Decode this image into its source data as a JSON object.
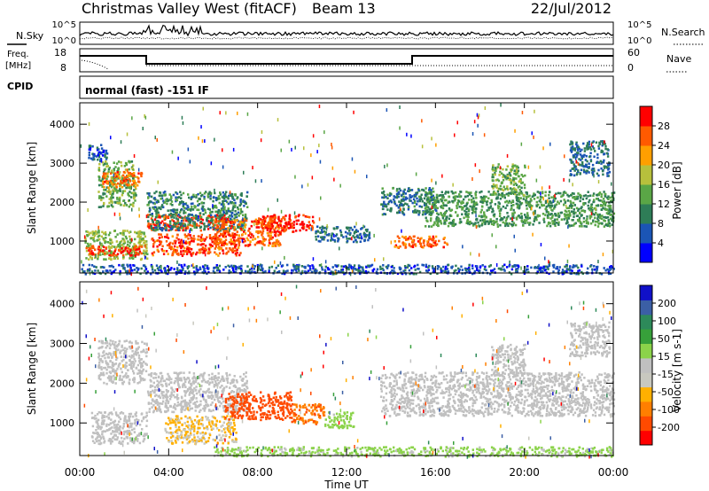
{
  "header": {
    "station": "Christmas Valley West (fitACF)",
    "beam": "Beam 13",
    "date": "22/Jul/2012"
  },
  "top_panels": {
    "nsky_label": "N.Sky",
    "nsky_ticks": [
      "10^5",
      "10^0"
    ],
    "nsearch_label": "N.Search",
    "nsearch_ticks": [
      "10^5",
      "10^0"
    ],
    "freq_label_line1": "Freq.",
    "freq_label_line2": "[MHz]",
    "freq_ticks": [
      "18",
      "8"
    ],
    "nave_label": "Nave",
    "nave_ticks": [
      "60",
      "0"
    ],
    "cpid_label": "CPID",
    "cpid_text": "normal (fast) -151 IF"
  },
  "colors": {
    "power_scale": [
      "#0000ff",
      "#1b55b5",
      "#2e7d57",
      "#5aa646",
      "#b7c03c",
      "#ff9f00",
      "#ff5a00",
      "#ff0000"
    ],
    "velocity_scale": [
      "#ff0000",
      "#ff4a00",
      "#ff7f00",
      "#ffb000",
      "#c8c8bf",
      "#c0c0c0",
      "#8bd34a",
      "#37a03a",
      "#2d8a5a",
      "#3b5fa5",
      "#1010c8"
    ]
  },
  "chart_data": [
    {
      "type": "heatmap",
      "panel": "power",
      "ylabel": "Slant Range [km]",
      "xlabel": "Time UT",
      "xticks": [
        "00:00",
        "04:00",
        "08:00",
        "12:00",
        "16:00",
        "20:00",
        "00:00"
      ],
      "yticks": [
        "1000",
        "2000",
        "3000",
        "4000"
      ],
      "ylim": [
        180,
        4550
      ],
      "xlim_hours": [
        0,
        24
      ],
      "colorbar_label": "Power [dB]",
      "colorbar_ticks": [
        "4",
        "8",
        "12",
        "16",
        "20",
        "24",
        "28"
      ],
      "colorbar_range": [
        0,
        32
      ],
      "blobs": [
        {
          "t": [
            0.2,
            3.0
          ],
          "r": [
            550,
            1300
          ],
          "v": 16
        },
        {
          "t": [
            0.2,
            2.8
          ],
          "r": [
            650,
            900
          ],
          "v": 28
        },
        {
          "t": [
            0.8,
            2.5
          ],
          "r": [
            1900,
            3100
          ],
          "v": 14
        },
        {
          "t": [
            1.0,
            2.8
          ],
          "r": [
            2400,
            2800
          ],
          "v": 25
        },
        {
          "t": [
            0.3,
            1.2
          ],
          "r": [
            3100,
            3500
          ],
          "v": 6
        },
        {
          "t": [
            3.0,
            6.5
          ],
          "r": [
            1300,
            1700
          ],
          "v": 28
        },
        {
          "t": [
            3.2,
            7.2
          ],
          "r": [
            650,
            1200
          ],
          "v": 27
        },
        {
          "t": [
            3.0,
            7.5
          ],
          "r": [
            1300,
            2300
          ],
          "v": 10
        },
        {
          "t": [
            6.0,
            9.0
          ],
          "r": [
            900,
            1600
          ],
          "v": 26
        },
        {
          "t": [
            8.0,
            10.5
          ],
          "r": [
            1250,
            1700
          ],
          "v": 28
        },
        {
          "t": [
            10.5,
            13.0
          ],
          "r": [
            1000,
            1400
          ],
          "v": 8
        },
        {
          "t": [
            13.5,
            16.0
          ],
          "r": [
            1700,
            2400
          ],
          "v": 9
        },
        {
          "t": [
            14.0,
            16.5
          ],
          "r": [
            850,
            1150
          ],
          "v": 26
        },
        {
          "t": [
            15.5,
            24.0
          ],
          "r": [
            1400,
            2300
          ],
          "v": 12
        },
        {
          "t": [
            18.5,
            20.0
          ],
          "r": [
            2200,
            3000
          ],
          "v": 14
        },
        {
          "t": [
            22.0,
            23.8
          ],
          "r": [
            2700,
            3600
          ],
          "v": 8
        },
        {
          "t": [
            0.0,
            24.0
          ],
          "r": [
            180,
            420
          ],
          "v": 6
        }
      ]
    },
    {
      "type": "heatmap",
      "panel": "velocity",
      "ylabel": "Slant Range [km]",
      "xlabel": "Time UT",
      "xticks": [
        "00:00",
        "04:00",
        "08:00",
        "12:00",
        "16:00",
        "20:00",
        "00:00"
      ],
      "yticks": [
        "1000",
        "2000",
        "3000",
        "4000"
      ],
      "ylim": [
        180,
        4550
      ],
      "xlim_hours": [
        0,
        24
      ],
      "colorbar_label": "Velocity [m s-1]",
      "colorbar_ticks": [
        "200",
        "100",
        "50",
        "15",
        "-15",
        "-50",
        "-100",
        "-200"
      ],
      "colorbar_range": [
        -250,
        250
      ],
      "blobs": [
        {
          "t": [
            0.5,
            3.0
          ],
          "r": [
            500,
            1300
          ],
          "v": 0
        },
        {
          "t": [
            0.8,
            3.0
          ],
          "r": [
            2000,
            3100
          ],
          "v": 0
        },
        {
          "t": [
            3.0,
            7.5
          ],
          "r": [
            1300,
            2300
          ],
          "v": 0
        },
        {
          "t": [
            3.8,
            7.0
          ],
          "r": [
            500,
            1200
          ],
          "v": -70
        },
        {
          "t": [
            6.5,
            9.5
          ],
          "r": [
            1100,
            1800
          ],
          "v": -180
        },
        {
          "t": [
            9.5,
            11.0
          ],
          "r": [
            1000,
            1500
          ],
          "v": -150
        },
        {
          "t": [
            11.0,
            12.3
          ],
          "r": [
            900,
            1300
          ],
          "v": 40
        },
        {
          "t": [
            13.5,
            24.0
          ],
          "r": [
            1200,
            2300
          ],
          "v": 0
        },
        {
          "t": [
            18.5,
            20.0
          ],
          "r": [
            2200,
            3000
          ],
          "v": 0
        },
        {
          "t": [
            22.0,
            23.8
          ],
          "r": [
            2700,
            3600
          ],
          "v": 0
        },
        {
          "t": [
            6.0,
            24.0
          ],
          "r": [
            180,
            420
          ],
          "v": 35
        }
      ]
    }
  ]
}
